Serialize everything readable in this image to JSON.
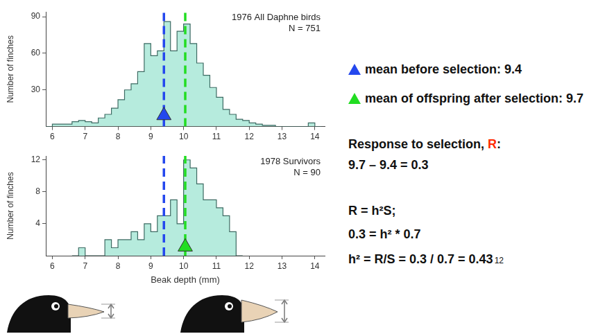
{
  "chart_data": [
    {
      "type": "histogram",
      "title": "1976 All Daphne birds",
      "subtitle": "N = 751",
      "y_label": "Number of finches",
      "bins": [
        5.8,
        6,
        6.2,
        6.4,
        6.6,
        6.8,
        7,
        7.2,
        7.4,
        7.6,
        7.8,
        8,
        8.2,
        8.4,
        8.6,
        8.8,
        9,
        9.2,
        9.4,
        9.6,
        9.8,
        10,
        10.2,
        10.4,
        10.6,
        10.8,
        11,
        11.2,
        11.4,
        11.6,
        11.8,
        12,
        12.2,
        12.4,
        12.6,
        12.8,
        13,
        13.2,
        13.4,
        13.6,
        13.8,
        14,
        14.2
      ],
      "values": [
        0,
        2,
        2,
        2,
        4,
        5,
        4,
        3,
        7,
        10,
        15,
        22,
        30,
        35,
        45,
        68,
        58,
        62,
        86,
        62,
        78,
        84,
        68,
        52,
        42,
        32,
        24,
        14,
        10,
        6,
        5,
        3,
        2,
        1,
        1,
        0,
        0,
        0,
        0,
        0,
        3,
        0
      ],
      "color": "#b6ebdd",
      "xlim": [
        5.8,
        14.3
      ],
      "xticks": [
        6,
        7,
        8,
        9,
        10,
        11,
        12,
        13,
        14
      ],
      "ylim": [
        0,
        94
      ],
      "yticks": [
        30,
        60,
        90
      ],
      "grid": false,
      "vlines": [
        {
          "x": 9.4,
          "color": "#2448ee",
          "line_style": "dashed"
        },
        {
          "x": 10.05,
          "color": "#22dd22",
          "line_style": "dashed"
        }
      ],
      "points": [
        {
          "x": 9.4,
          "y": 9,
          "color": "#2448ee",
          "marker": "triangle"
        }
      ]
    },
    {
      "type": "histogram",
      "title": "1978 Survivors",
      "subtitle": "N = 90",
      "x_label": "Beak depth (mm)",
      "y_label": "Number of finches",
      "bins": [
        6.6,
        6.8,
        7,
        7.2,
        7.4,
        7.6,
        7.8,
        8,
        8.2,
        8.4,
        8.6,
        8.8,
        9,
        9.2,
        9.4,
        9.6,
        9.8,
        10,
        10.2,
        10.4,
        10.6,
        10.8,
        11,
        11.2,
        11.4,
        11.6,
        11.8
      ],
      "values": [
        0,
        1,
        0,
        0,
        0,
        2,
        1,
        2,
        2,
        3,
        2,
        4,
        3,
        5,
        5,
        7,
        4,
        12,
        11,
        9,
        7,
        7,
        6,
        5,
        3,
        0
      ],
      "color": "#b6ebdd",
      "xlim": [
        5.8,
        14.3
      ],
      "xticks": [
        6,
        7,
        8,
        9,
        10,
        11,
        12,
        13,
        14
      ],
      "ylim": [
        0,
        12.5
      ],
      "yticks": [
        4,
        8,
        12
      ],
      "grid": false,
      "vlines": [
        {
          "x": 9.4,
          "color": "#2448ee",
          "line_style": "dashed"
        },
        {
          "x": 10.05,
          "color": "#22dd22",
          "line_style": "dashed"
        }
      ],
      "points": [
        {
          "x": 10.05,
          "y": 1.1,
          "color": "#22dd22",
          "marker": "triangle"
        }
      ]
    }
  ],
  "annotations": [
    {
      "marker": "triangle",
      "color": "#2448ee",
      "parts": [
        {
          "text": "mean before selection: 9.4"
        }
      ]
    },
    {
      "marker": "triangle",
      "color": "#22dd22",
      "parts": [
        {
          "text": "mean of offspring after selection: 9.7"
        }
      ]
    },
    {
      "parts": [
        {
          "text": "Response to selection, "
        },
        {
          "text": "R",
          "color": "#ff2a00"
        },
        {
          "text": ":"
        }
      ]
    },
    {
      "parts": [
        {
          "text": "9.7 – 9.4 = 0.3"
        }
      ]
    },
    {
      "parts": [
        {
          "text": "R = h²S;"
        }
      ]
    },
    {
      "parts": [
        {
          "text": "0.3 = h² * 0.7"
        }
      ]
    },
    {
      "parts": [
        {
          "text": "h² = R/S = 0.3 / 0.7 = 0.43"
        }
      ]
    }
  ],
  "page_number": "12"
}
